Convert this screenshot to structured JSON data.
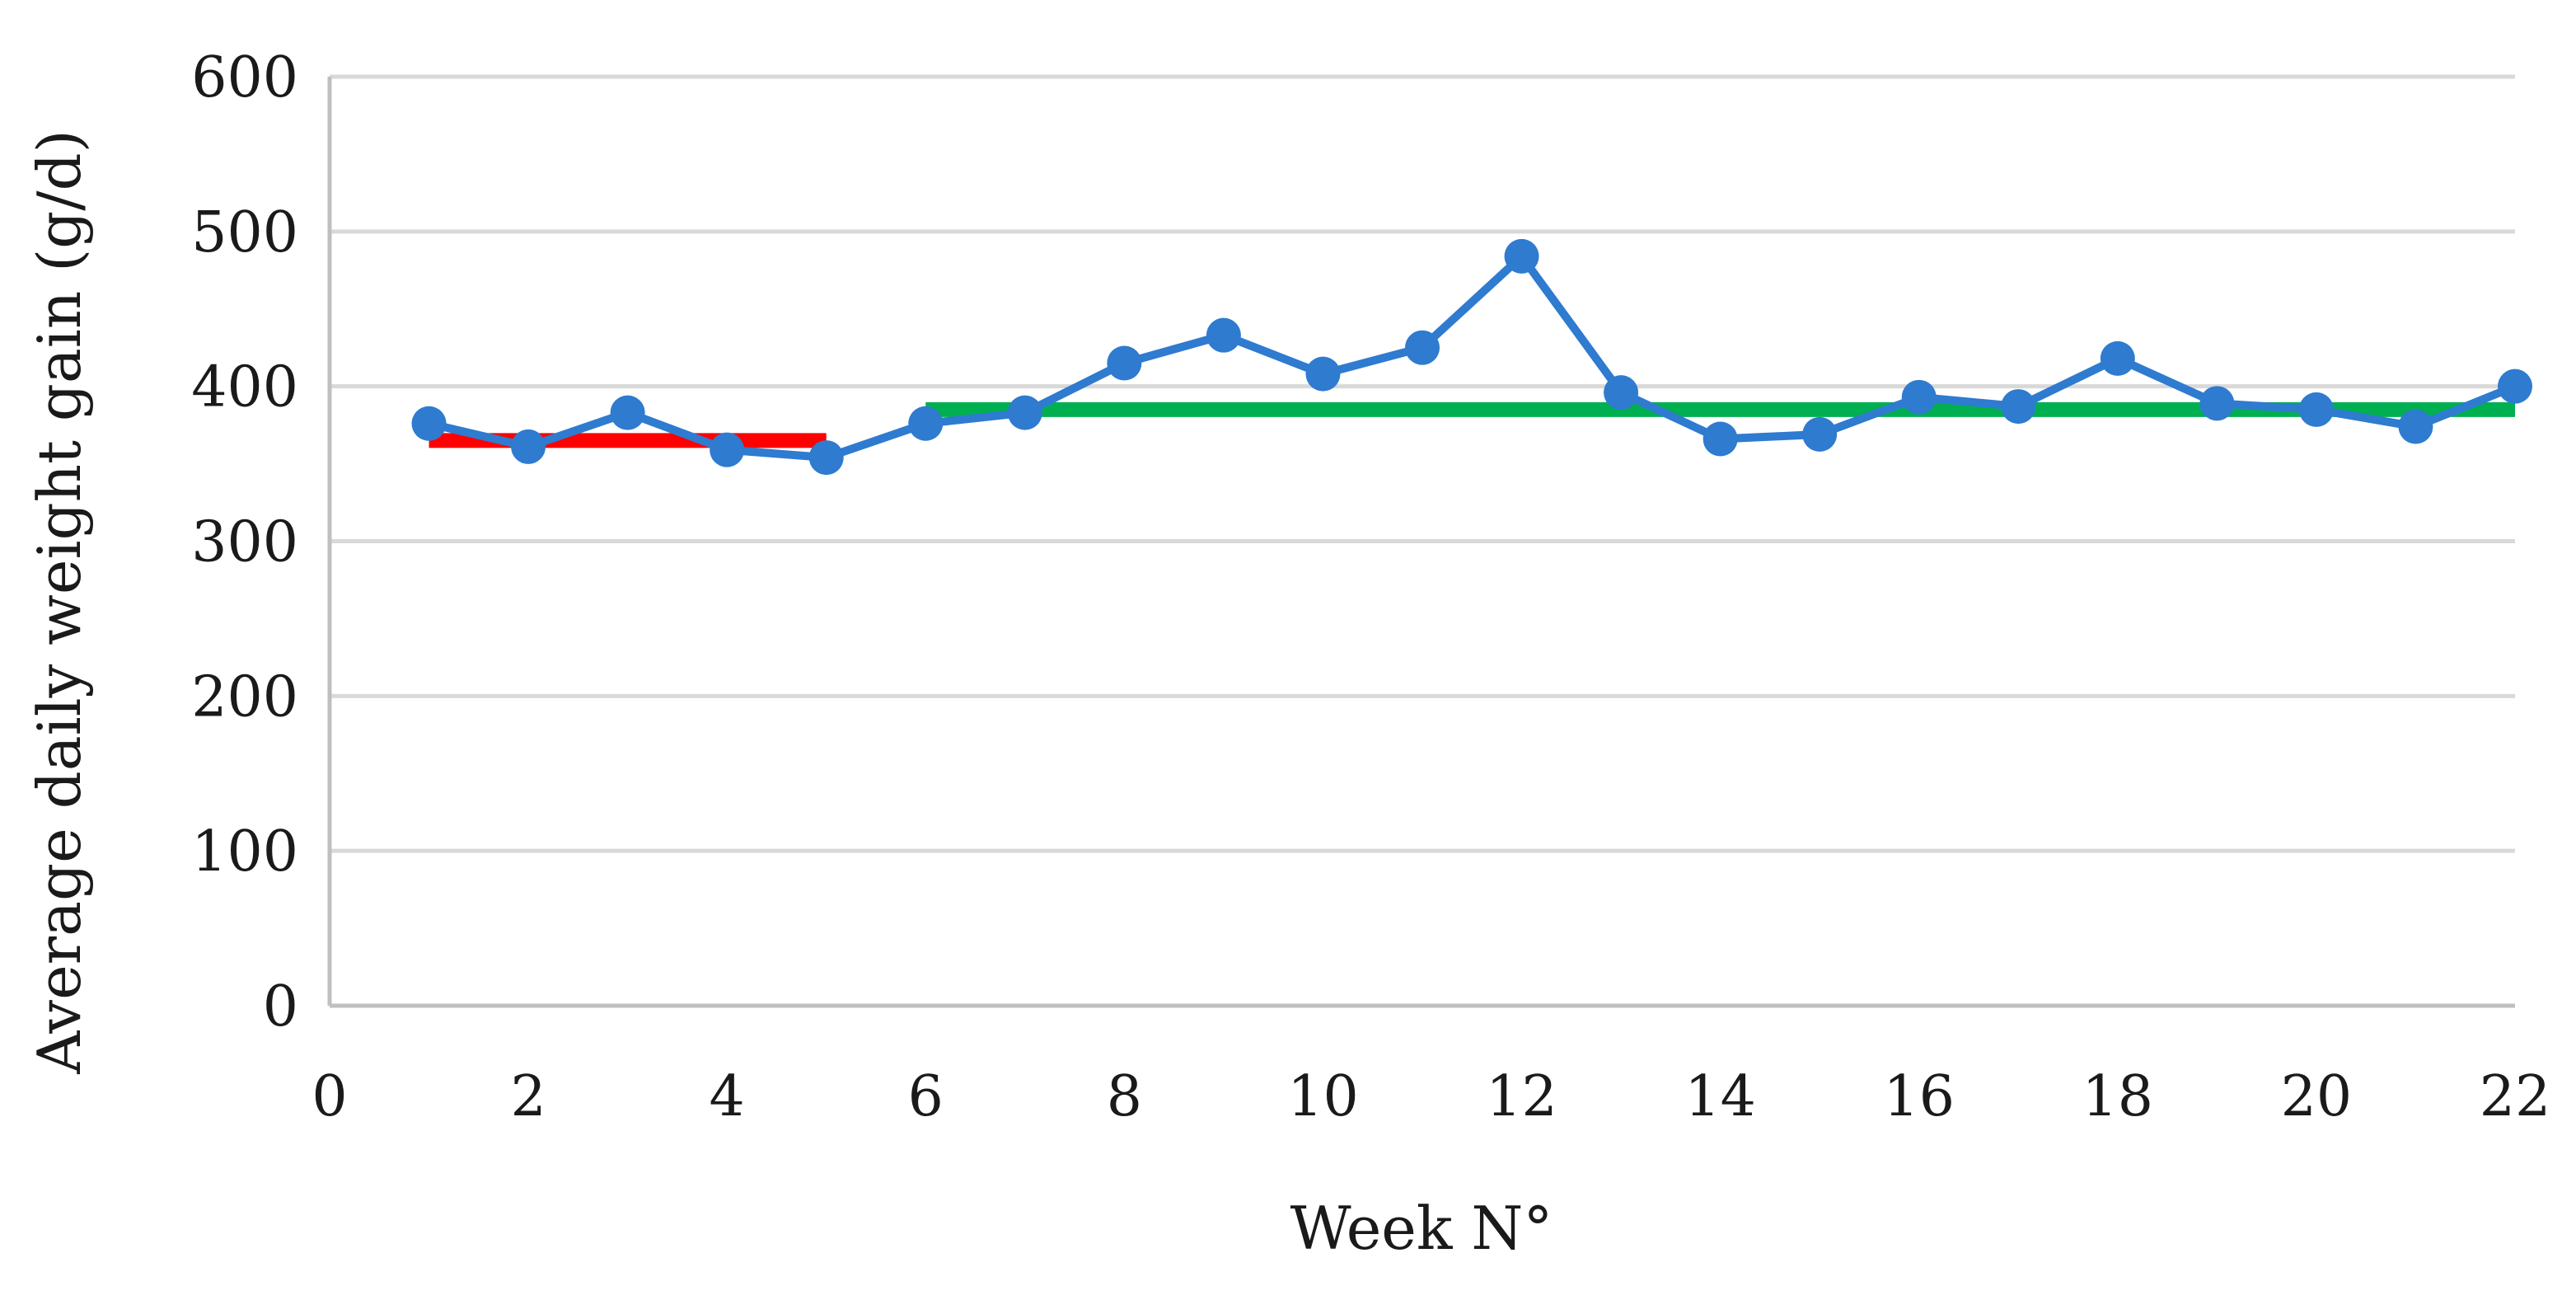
{
  "chart_data": {
    "type": "line",
    "xlabel": "Week N°",
    "ylabel": "Average daily weight gain (g/d)",
    "xlim": [
      0,
      22
    ],
    "ylim": [
      0,
      600
    ],
    "x_ticks": [
      0,
      2,
      4,
      6,
      8,
      10,
      12,
      14,
      16,
      18,
      20,
      22
    ],
    "y_ticks": [
      0,
      100,
      200,
      300,
      400,
      500,
      600
    ],
    "grid": true,
    "legend": "none",
    "series": [
      {
        "color": "#2e7bd0",
        "marker": "circle",
        "x": [
          1,
          2,
          3,
          4,
          5,
          6,
          7,
          8,
          9,
          10,
          11,
          12,
          13,
          14,
          15,
          16,
          17,
          18,
          19,
          20,
          21,
          22
        ],
        "y": [
          376,
          361,
          383,
          359,
          354,
          376,
          383,
          415,
          433,
          408,
          425,
          484,
          396,
          366,
          369,
          393,
          387,
          418,
          389,
          385,
          374,
          400
        ]
      }
    ],
    "reference_lines": [
      {
        "color": "#ff0000",
        "x": [
          1,
          5
        ],
        "y": 365
      },
      {
        "color": "#00b050",
        "x": [
          6,
          22
        ],
        "y": 385
      }
    ]
  }
}
